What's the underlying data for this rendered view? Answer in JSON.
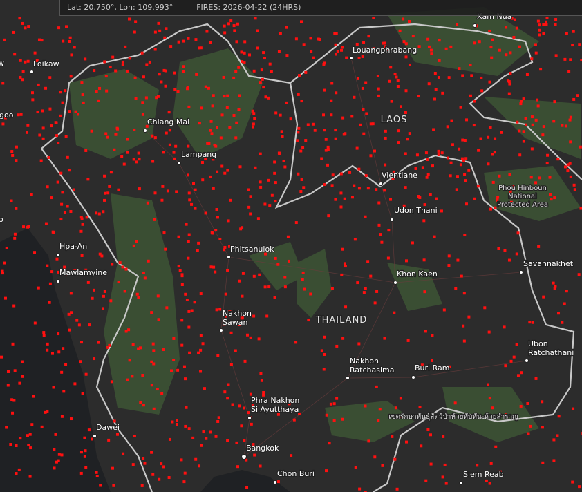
{
  "status": {
    "coords": "Lat: 20.750°, Lon: 109.993°",
    "fires": "FIRES: 2026-04-22 (24HRS)"
  },
  "countries": [
    "LAOS",
    "THAILAND"
  ],
  "places": [
    {
      "lines": [
        "Loikaw"
      ]
    },
    {
      "lines": [
        "Xam Nua"
      ]
    },
    {
      "lines": [
        "Louangphrabang"
      ]
    },
    {
      "lines": [
        "Chiang Mai"
      ]
    },
    {
      "lines": [
        "Lampang"
      ]
    },
    {
      "lines": [
        "Vientiane"
      ]
    },
    {
      "lines": [
        "Udon Thani"
      ]
    },
    {
      "lines": [
        "Phitsanulok"
      ]
    },
    {
      "lines": [
        "Hpa-An"
      ]
    },
    {
      "lines": [
        "Mawlamyine"
      ]
    },
    {
      "lines": [
        "Khon Kaen"
      ]
    },
    {
      "lines": [
        "Savannakhet"
      ]
    },
    {
      "lines": [
        "Nakhon",
        "Sawan"
      ]
    },
    {
      "lines": [
        "Ubon",
        "Ratchathani"
      ]
    },
    {
      "lines": [
        "Nakhon",
        "Ratchasima"
      ]
    },
    {
      "lines": [
        "Buri Ram"
      ]
    },
    {
      "lines": [
        "Phra Nakhon",
        "Si Ayutthaya"
      ]
    },
    {
      "lines": [
        "Dawei"
      ]
    },
    {
      "lines": [
        "Bangkok"
      ]
    },
    {
      "lines": [
        "Chon Buri"
      ]
    },
    {
      "lines": [
        "Siem Reab"
      ]
    }
  ],
  "areas": [
    {
      "lines": [
        "Phou Hinboun",
        "National",
        "Protected Area"
      ]
    },
    {
      "lines": [
        "เขตรักษาพันธุ์สัตว์ป่าห้วยทับทัน-ห้วยสำราญ"
      ]
    }
  ],
  "edge_labels": [
    "w",
    "goo",
    "o"
  ]
}
